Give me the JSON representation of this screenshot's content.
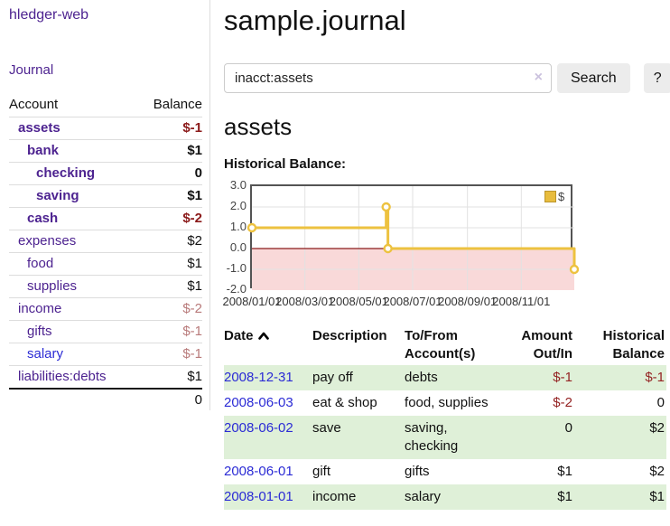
{
  "app": {
    "title": "hledger-web"
  },
  "sidebar": {
    "journal_link": "Journal",
    "accounts_header": {
      "account": "Account",
      "balance": "Balance"
    },
    "accounts": [
      {
        "name": "assets",
        "indent": 1,
        "bold": true,
        "balance": "$-1",
        "balance_color": "neg-strong"
      },
      {
        "name": "bank",
        "indent": 2,
        "bold": true,
        "balance": "$1",
        "balance_color": "pos"
      },
      {
        "name": "checking",
        "indent": 3,
        "bold": true,
        "balance": "0",
        "balance_color": "pos"
      },
      {
        "name": "saving",
        "indent": 3,
        "bold": true,
        "balance": "$1",
        "balance_color": "pos"
      },
      {
        "name": "cash",
        "indent": 2,
        "bold": true,
        "balance": "$-2",
        "balance_color": "neg-strong"
      },
      {
        "name": "expenses",
        "indent": 1,
        "bold": false,
        "balance": "$2",
        "balance_color": "pos"
      },
      {
        "name": "food",
        "indent": 2,
        "bold": false,
        "balance": "$1",
        "balance_color": "pos"
      },
      {
        "name": "supplies",
        "indent": 2,
        "bold": false,
        "balance": "$1",
        "balance_color": "pos"
      },
      {
        "name": "income",
        "indent": 1,
        "bold": false,
        "balance": "$-2",
        "balance_color": "neg-soft"
      },
      {
        "name": "gifts",
        "indent": 2,
        "bold": false,
        "balance": "$-1",
        "balance_color": "neg-soft"
      },
      {
        "name": "salary",
        "indent": 2,
        "bold": false,
        "balance": "$-1",
        "balance_color": "neg-soft",
        "link_color": "blue"
      },
      {
        "name": "liabilities:debts",
        "indent": 1,
        "bold": false,
        "balance": "$1",
        "balance_color": "pos"
      }
    ],
    "total": "0"
  },
  "header": {
    "title": "sample.journal"
  },
  "search": {
    "value": "inacct:assets",
    "clear_icon": "×",
    "button": "Search",
    "help_button": "?"
  },
  "account_page": {
    "heading": "assets",
    "chart_label": "Historical Balance:"
  },
  "chart_data": {
    "type": "line",
    "step": true,
    "title": "Historical Balance",
    "series": [
      {
        "name": "$",
        "color": "#EDC240",
        "points": [
          [
            "2008/01/01",
            1
          ],
          [
            "2008/06/01",
            2
          ],
          [
            "2008/06/03",
            0
          ],
          [
            "2008/12/31",
            -1
          ]
        ]
      }
    ],
    "x_range": [
      "2008/01/01",
      "2008/12/31"
    ],
    "x_ticks": [
      "2008/01/01",
      "2008/03/01",
      "2008/05/01",
      "2008/07/01",
      "2008/09/01",
      "2008/11/01"
    ],
    "y_ticks": [
      3.0,
      2.0,
      1.0,
      0.0,
      -1.0,
      -2.0
    ],
    "ylim": [
      -2,
      3
    ],
    "grid": true,
    "grid_color": "#e2e2e2",
    "negative_fill": "#f9d9d9",
    "zero_line_color": "#8b1a1a",
    "legend": "$",
    "legend_position": "top-right"
  },
  "register": {
    "columns": [
      {
        "label": "Date",
        "sort": "asc",
        "cls": "c1"
      },
      {
        "label": "Description",
        "cls": "c2"
      },
      {
        "label": "To/From Account(s)",
        "cls": "c3"
      },
      {
        "label": "Amount Out/In",
        "cls": "c4",
        "align": "right"
      },
      {
        "label": "Historical Balance",
        "cls": "c5",
        "align": "right"
      }
    ],
    "rows": [
      {
        "date": "2008-12-31",
        "description": "pay off",
        "accounts": "debts",
        "amount": "$-1",
        "amount_neg": true,
        "balance": "$-1",
        "balance_neg": true,
        "shaded": true
      },
      {
        "date": "2008-06-03",
        "description": "eat & shop",
        "accounts": "food, supplies",
        "amount": "$-2",
        "amount_neg": true,
        "balance": "0",
        "balance_neg": false,
        "shaded": false
      },
      {
        "date": "2008-06-02",
        "description": "save",
        "accounts": "saving, checking",
        "amount": "0",
        "amount_neg": false,
        "balance": "$2",
        "balance_neg": false,
        "shaded": true
      },
      {
        "date": "2008-06-01",
        "description": "gift",
        "accounts": "gifts",
        "amount": "$1",
        "amount_neg": false,
        "balance": "$2",
        "balance_neg": false,
        "shaded": false
      },
      {
        "date": "2008-01-01",
        "description": "income",
        "accounts": "salary",
        "amount": "$1",
        "amount_neg": false,
        "balance": "$1",
        "balance_neg": false,
        "shaded": true
      }
    ]
  },
  "colors": {
    "accent_purple": "#4d2390",
    "link_blue": "#2b2bd5",
    "negative_strong": "#8b1a1a",
    "negative_soft": "#b87a7a",
    "row_green": "#dff0d8",
    "chart_line": "#EDC240",
    "chart_negative_region": "#f9d9d9",
    "chart_zero_line": "#8b1a1a"
  }
}
